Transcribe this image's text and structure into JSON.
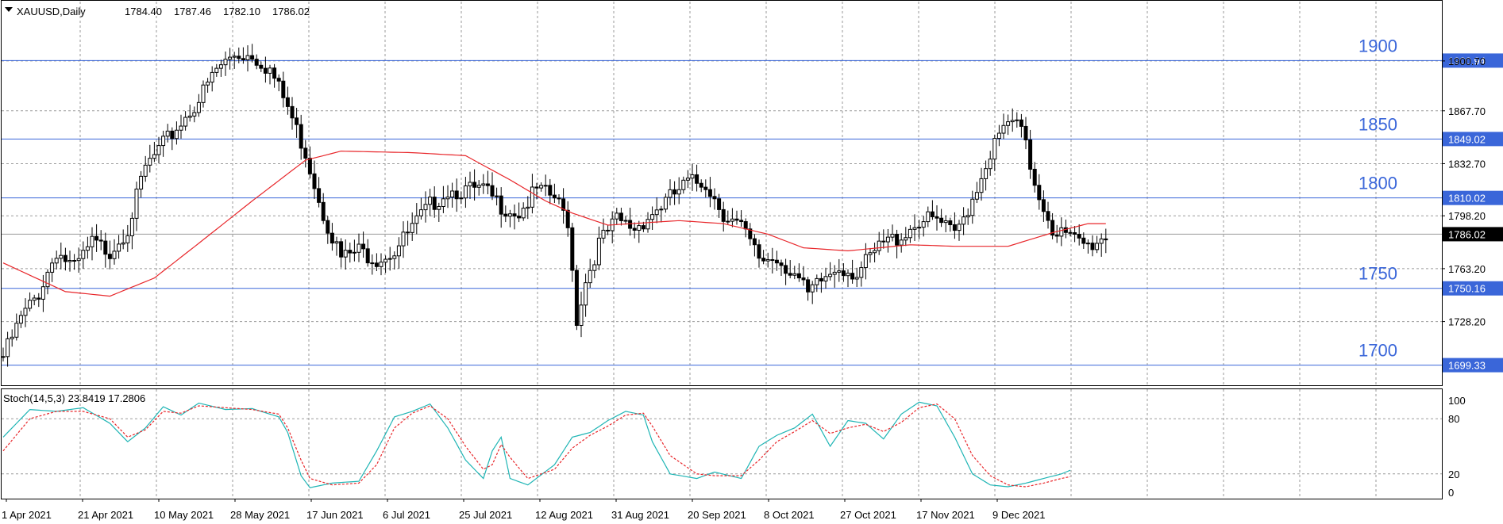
{
  "chart_data": [
    {
      "type": "candlestick",
      "title": "XAUUSD,Daily",
      "ohlc_readout": {
        "open": "1784.40",
        "high": "1787.46",
        "low": "1782.10",
        "close": "1786.02"
      },
      "ylim": [
        1686,
        1940
      ],
      "y_ticks": [
        "1900.70",
        "1867.70",
        "1832.70",
        "1798.20",
        "1763.20",
        "1728.20"
      ],
      "x_ticks": [
        "1 Apr 2021",
        "21 Apr 2021",
        "10 May 2021",
        "28 May 2021",
        "17 Jun 2021",
        "6 Jul 2021",
        "25 Jul 2021",
        "12 Aug 2021",
        "31 Aug 2021",
        "20 Sep 2021",
        "8 Oct 2021",
        "27 Oct 2021",
        "17 Nov 2021",
        "9 Dec 2021"
      ],
      "grid": true,
      "price_levels": [
        {
          "label": "1900",
          "tag": "1900.94",
          "value": 1900.94
        },
        {
          "label": "1850",
          "tag": "1849.02",
          "value": 1849.02
        },
        {
          "label": "1800",
          "tag": "1810.02",
          "value": 1810.02
        },
        {
          "label": "1750",
          "tag": "1750.16",
          "value": 1750.16
        },
        {
          "label": "1700",
          "tag": "1699.33",
          "value": 1699.33
        }
      ],
      "current_price": {
        "tag": "1786.02",
        "value": 1786.02
      },
      "level_color": "#3a66d9",
      "ma_color": "#e8262a",
      "close_anchors": [
        [
          0,
          1705
        ],
        [
          4,
          1730
        ],
        [
          8,
          1747
        ],
        [
          12,
          1775
        ],
        [
          16,
          1763
        ],
        [
          20,
          1780
        ],
        [
          24,
          1775
        ],
        [
          28,
          1790
        ],
        [
          32,
          1830
        ],
        [
          36,
          1845
        ],
        [
          40,
          1860
        ],
        [
          44,
          1875
        ],
        [
          48,
          1895
        ],
        [
          52,
          1905
        ],
        [
          56,
          1905
        ],
        [
          60,
          1895
        ],
        [
          64,
          1870
        ],
        [
          68,
          1840
        ],
        [
          72,
          1800
        ],
        [
          76,
          1770
        ],
        [
          80,
          1775
        ],
        [
          84,
          1770
        ],
        [
          88,
          1775
        ],
        [
          92,
          1790
        ],
        [
          96,
          1805
        ],
        [
          100,
          1815
        ],
        [
          104,
          1815
        ],
        [
          108,
          1815
        ],
        [
          112,
          1805
        ],
        [
          116,
          1800
        ],
        [
          120,
          1815
        ],
        [
          124,
          1810
        ],
        [
          127,
          1795
        ],
        [
          129,
          1730
        ],
        [
          131,
          1755
        ],
        [
          134,
          1780
        ],
        [
          138,
          1795
        ],
        [
          142,
          1790
        ],
        [
          146,
          1800
        ],
        [
          150,
          1810
        ],
        [
          154,
          1820
        ],
        [
          158,
          1820
        ],
        [
          162,
          1800
        ],
        [
          166,
          1790
        ],
        [
          170,
          1770
        ],
        [
          174,
          1770
        ],
        [
          178,
          1760
        ],
        [
          181,
          1745
        ],
        [
          184,
          1755
        ],
        [
          188,
          1765
        ],
        [
          192,
          1760
        ],
        [
          195,
          1770
        ],
        [
          198,
          1780
        ],
        [
          202,
          1785
        ],
        [
          206,
          1795
        ],
        [
          210,
          1795
        ],
        [
          214,
          1785
        ],
        [
          218,
          1810
        ],
        [
          222,
          1840
        ],
        [
          226,
          1860
        ],
        [
          229,
          1855
        ],
        [
          232,
          1820
        ],
        [
          236,
          1790
        ],
        [
          240,
          1783
        ],
        [
          244,
          1778
        ],
        [
          248,
          1785
        ]
      ],
      "ma_anchors": [
        [
          0,
          1767
        ],
        [
          14,
          1748
        ],
        [
          24,
          1745
        ],
        [
          34,
          1757
        ],
        [
          44,
          1780
        ],
        [
          56,
          1808
        ],
        [
          68,
          1835
        ],
        [
          76,
          1841
        ],
        [
          92,
          1840
        ],
        [
          104,
          1838
        ],
        [
          114,
          1822
        ],
        [
          122,
          1808
        ],
        [
          128,
          1800
        ],
        [
          136,
          1792
        ],
        [
          152,
          1795
        ],
        [
          162,
          1793
        ],
        [
          172,
          1786
        ],
        [
          180,
          1777
        ],
        [
          190,
          1775
        ],
        [
          204,
          1779
        ],
        [
          214,
          1778
        ],
        [
          226,
          1778
        ],
        [
          236,
          1787
        ],
        [
          244,
          1793
        ],
        [
          248,
          1793
        ]
      ],
      "bar_count": 249
    },
    {
      "type": "line",
      "title": "Stoch(14,5,3) 23.8419 17.2806",
      "indicator": "Stoch(14,5,3)",
      "values_shown": [
        "23.8419",
        "17.2806"
      ],
      "ylim": [
        0,
        100
      ],
      "y_ticks": [
        "100",
        "80",
        "20",
        "0"
      ],
      "levels": [
        80,
        20
      ],
      "series": [
        {
          "color": "#1fb5b5",
          "style": "solid",
          "anchors": [
            [
              0,
              60
            ],
            [
              6,
              90
            ],
            [
              12,
              88
            ],
            [
              18,
              92
            ],
            [
              24,
              75
            ],
            [
              28,
              55
            ],
            [
              32,
              70
            ],
            [
              36,
              93
            ],
            [
              40,
              84
            ],
            [
              44,
              97
            ],
            [
              50,
              90
            ],
            [
              56,
              91
            ],
            [
              62,
              82
            ],
            [
              64,
              65
            ],
            [
              67,
              18
            ],
            [
              69,
              5
            ],
            [
              74,
              10
            ],
            [
              80,
              12
            ],
            [
              84,
              45
            ],
            [
              88,
              82
            ],
            [
              92,
              88
            ],
            [
              96,
              96
            ],
            [
              100,
              70
            ],
            [
              104,
              35
            ],
            [
              108,
              15
            ],
            [
              110,
              45
            ],
            [
              112,
              60
            ],
            [
              114,
              15
            ],
            [
              118,
              8
            ],
            [
              124,
              30
            ],
            [
              128,
              60
            ],
            [
              132,
              65
            ],
            [
              136,
              78
            ],
            [
              140,
              88
            ],
            [
              144,
              84
            ],
            [
              146,
              55
            ],
            [
              150,
              20
            ],
            [
              156,
              15
            ],
            [
              160,
              22
            ],
            [
              166,
              15
            ],
            [
              170,
              50
            ],
            [
              174,
              62
            ],
            [
              178,
              70
            ],
            [
              182,
              85
            ],
            [
              186,
              50
            ],
            [
              190,
              78
            ],
            [
              194,
              75
            ],
            [
              198,
              58
            ],
            [
              202,
              85
            ],
            [
              206,
              98
            ],
            [
              210,
              94
            ],
            [
              214,
              60
            ],
            [
              218,
              20
            ],
            [
              222,
              8
            ],
            [
              226,
              6
            ],
            [
              230,
              10
            ],
            [
              234,
              15
            ],
            [
              238,
              20
            ],
            [
              240,
              24
            ]
          ]
        },
        {
          "color": "#e8262a",
          "style": "dashed",
          "anchors": [
            [
              0,
              45
            ],
            [
              6,
              80
            ],
            [
              12,
              88
            ],
            [
              18,
              88
            ],
            [
              24,
              80
            ],
            [
              28,
              60
            ],
            [
              32,
              68
            ],
            [
              36,
              88
            ],
            [
              40,
              86
            ],
            [
              44,
              94
            ],
            [
              50,
              92
            ],
            [
              56,
              90
            ],
            [
              62,
              85
            ],
            [
              64,
              70
            ],
            [
              67,
              35
            ],
            [
              69,
              15
            ],
            [
              74,
              8
            ],
            [
              80,
              10
            ],
            [
              84,
              30
            ],
            [
              88,
              70
            ],
            [
              92,
              86
            ],
            [
              96,
              94
            ],
            [
              100,
              80
            ],
            [
              104,
              50
            ],
            [
              108,
              25
            ],
            [
              110,
              30
            ],
            [
              112,
              52
            ],
            [
              114,
              38
            ],
            [
              118,
              15
            ],
            [
              124,
              25
            ],
            [
              128,
              48
            ],
            [
              132,
              62
            ],
            [
              136,
              72
            ],
            [
              140,
              84
            ],
            [
              144,
              86
            ],
            [
              146,
              72
            ],
            [
              150,
              40
            ],
            [
              156,
              20
            ],
            [
              160,
              18
            ],
            [
              166,
              18
            ],
            [
              170,
              35
            ],
            [
              174,
              55
            ],
            [
              178,
              66
            ],
            [
              182,
              78
            ],
            [
              186,
              64
            ],
            [
              190,
              70
            ],
            [
              194,
              74
            ],
            [
              198,
              66
            ],
            [
              202,
              76
            ],
            [
              206,
              92
            ],
            [
              210,
              96
            ],
            [
              214,
              80
            ],
            [
              218,
              40
            ],
            [
              222,
              18
            ],
            [
              226,
              8
            ],
            [
              230,
              6
            ],
            [
              234,
              10
            ],
            [
              238,
              15
            ],
            [
              240,
              17
            ]
          ]
        }
      ]
    }
  ]
}
